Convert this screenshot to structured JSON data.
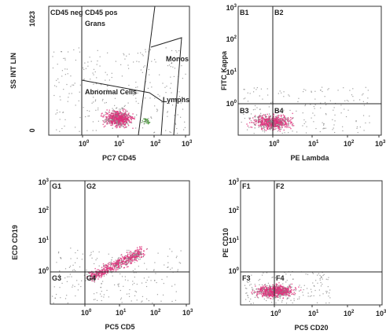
{
  "panels": [
    {
      "x_label": "PC7 CD45",
      "y_label": "SS INT LIN",
      "y_ticks": [
        "1023",
        "0"
      ],
      "x_ticks": [
        {
          "base": "10",
          "exp": "0"
        },
        {
          "base": "10",
          "exp": "1"
        },
        {
          "base": "10",
          "exp": "2"
        },
        {
          "base": "10",
          "exp": "3"
        }
      ],
      "regions": [
        "CD45 neg",
        "CD45 pos",
        "Grans",
        "Monos",
        "Abnormal Cells",
        "Lymphs"
      ]
    },
    {
      "x_label": "PE Lambda",
      "y_label": "FITC Kappa",
      "y_ticks": [
        {
          "base": "10",
          "exp": "3"
        },
        {
          "base": "10",
          "exp": "2"
        },
        {
          "base": "10",
          "exp": "1"
        },
        {
          "base": "10",
          "exp": "0"
        }
      ],
      "x_ticks": [
        {
          "base": "10",
          "exp": "0"
        },
        {
          "base": "10",
          "exp": "1"
        },
        {
          "base": "10",
          "exp": "2"
        },
        {
          "base": "10",
          "exp": "3"
        }
      ],
      "regions": [
        "B1",
        "B2",
        "B3",
        "B4"
      ]
    },
    {
      "x_label": "PC5 CD5",
      "y_label": "ECD CD19",
      "y_ticks": [
        {
          "base": "10",
          "exp": "3"
        },
        {
          "base": "10",
          "exp": "2"
        },
        {
          "base": "10",
          "exp": "1"
        },
        {
          "base": "10",
          "exp": "0"
        }
      ],
      "x_ticks": [
        {
          "base": "10",
          "exp": "0"
        },
        {
          "base": "10",
          "exp": "1"
        },
        {
          "base": "10",
          "exp": "2"
        },
        {
          "base": "10",
          "exp": "3"
        }
      ],
      "regions": [
        "G1",
        "G2",
        "G3",
        "G4"
      ]
    },
    {
      "x_label": "PC5 CD20",
      "y_label": "PE CD10",
      "y_ticks": [
        {
          "base": "10",
          "exp": "3"
        },
        {
          "base": "10",
          "exp": "2"
        },
        {
          "base": "10",
          "exp": "1"
        },
        {
          "base": "10",
          "exp": "0"
        }
      ],
      "x_ticks": [
        {
          "base": "10",
          "exp": "0"
        },
        {
          "base": "10",
          "exp": "1"
        },
        {
          "base": "10",
          "exp": "2"
        },
        {
          "base": "10",
          "exp": "3"
        }
      ],
      "regions": [
        "F1",
        "F2",
        "F3",
        "F4"
      ]
    }
  ]
}
